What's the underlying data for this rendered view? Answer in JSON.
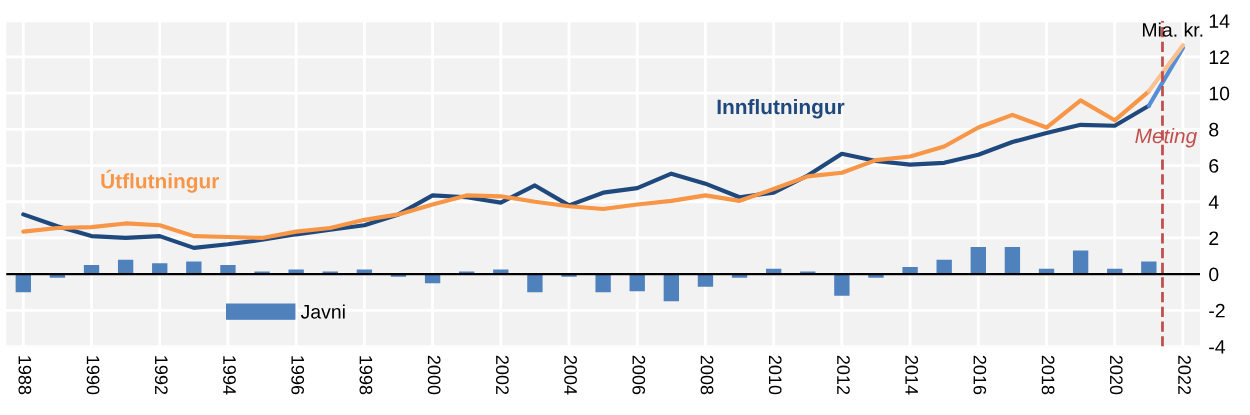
{
  "chart_data": {
    "type": "line",
    "x": [
      1988,
      1989,
      1990,
      1991,
      1992,
      1993,
      1994,
      1995,
      1996,
      1997,
      1998,
      1999,
      2000,
      2001,
      2002,
      2003,
      2004,
      2005,
      2006,
      2007,
      2008,
      2009,
      2010,
      2011,
      2012,
      2013,
      2014,
      2015,
      2016,
      2017,
      2018,
      2019,
      2020,
      2021,
      2022
    ],
    "series": [
      {
        "name": "Javni",
        "type": "bar",
        "color": "#4f81bd",
        "values": [
          -1.0,
          -0.2,
          0.5,
          0.8,
          0.6,
          0.7,
          0.5,
          0.15,
          0.25,
          0.15,
          0.25,
          -0.15,
          -0.5,
          0.15,
          0.25,
          -1.0,
          -0.15,
          -1.0,
          -0.95,
          -1.5,
          -0.7,
          -0.2,
          0.3,
          0.15,
          -1.2,
          -0.2,
          0.4,
          0.8,
          1.5,
          1.5,
          0.3,
          1.3,
          0.3,
          0.7,
          0.0
        ]
      },
      {
        "name": "Innflutningur",
        "color": "#1f497d",
        "values": [
          3.3,
          2.65,
          2.1,
          2.0,
          2.1,
          1.45,
          1.65,
          1.9,
          2.2,
          2.45,
          2.7,
          3.3,
          4.35,
          4.25,
          3.95,
          4.9,
          3.8,
          4.5,
          4.75,
          5.55,
          5.0,
          4.25,
          4.5,
          5.45,
          6.65,
          6.25,
          6.05,
          6.15,
          6.6,
          7.3,
          7.8,
          8.25,
          8.2,
          9.3,
          null
        ]
      },
      {
        "name": "Útflutningur",
        "color": "#f79646",
        "values": [
          2.35,
          2.55,
          2.6,
          2.8,
          2.7,
          2.1,
          2.05,
          2.0,
          2.35,
          2.55,
          3.0,
          3.3,
          3.85,
          4.35,
          4.3,
          4.0,
          3.75,
          3.6,
          3.85,
          4.05,
          4.35,
          4.05,
          4.7,
          5.4,
          5.6,
          6.3,
          6.5,
          7.05,
          8.1,
          8.8,
          8.1,
          9.6,
          8.5,
          10.1,
          null
        ]
      },
      {
        "color": "#558ed5",
        "values": [
          null,
          null,
          null,
          null,
          null,
          null,
          null,
          null,
          null,
          null,
          null,
          null,
          null,
          null,
          null,
          null,
          null,
          null,
          null,
          null,
          null,
          null,
          null,
          null,
          null,
          null,
          null,
          null,
          null,
          null,
          null,
          null,
          null,
          9.3,
          12.5
        ]
      },
      {
        "color": "#fac090",
        "values": [
          null,
          null,
          null,
          null,
          null,
          null,
          null,
          null,
          null,
          null,
          null,
          null,
          null,
          null,
          null,
          null,
          null,
          null,
          null,
          null,
          null,
          null,
          null,
          null,
          null,
          null,
          null,
          null,
          null,
          null,
          null,
          null,
          null,
          10.1,
          12.65
        ]
      }
    ],
    "xlim": [
      1987.5,
      2022.5
    ],
    "xticks": [
      1988,
      1990,
      1992,
      1994,
      1996,
      1998,
      2000,
      2002,
      2004,
      2006,
      2008,
      2010,
      2012,
      2014,
      2016,
      2018,
      2020,
      2022
    ],
    "ylim": [
      -4,
      14
    ],
    "yticks": [
      -4,
      -2,
      0,
      2,
      4,
      6,
      8,
      10,
      12,
      14
    ],
    "ylabel": "Mia. kr.",
    "ref_lines": [
      {
        "axis": "x",
        "value": 2021.4,
        "label": "Meting",
        "color": "#c0504d",
        "line_style": "dashed"
      }
    ],
    "grid": true,
    "legend": "bottom left"
  }
}
